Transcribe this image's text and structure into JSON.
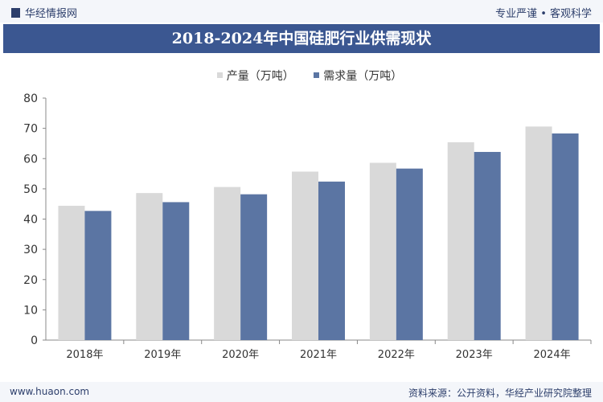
{
  "header": {
    "logo_text": "华经情报网",
    "slogan": "专业严谨 • 客观科学"
  },
  "footer": {
    "website": "www.huaon.com",
    "source": "资料来源：公开资料，华经产业研究院整理"
  },
  "chart_data": {
    "type": "bar",
    "title": "2018-2024年中国硅肥行业供需现状",
    "categories": [
      "2018年",
      "2019年",
      "2020年",
      "2021年",
      "2022年",
      "2023年",
      "2024年"
    ],
    "series": [
      {
        "name": "产量（万吨）",
        "color": "#d9d9d9",
        "values": [
          44.4,
          48.6,
          50.6,
          55.7,
          58.6,
          65.4,
          70.6
        ]
      },
      {
        "name": "需求量（万吨）",
        "color": "#5b75a3",
        "values": [
          42.7,
          45.6,
          48.2,
          52.4,
          56.7,
          62.2,
          68.3
        ]
      }
    ],
    "ylim": [
      0,
      80
    ],
    "yticks": [
      0,
      10,
      20,
      30,
      40,
      50,
      60,
      70,
      80
    ],
    "legend": "top",
    "grid": false
  }
}
